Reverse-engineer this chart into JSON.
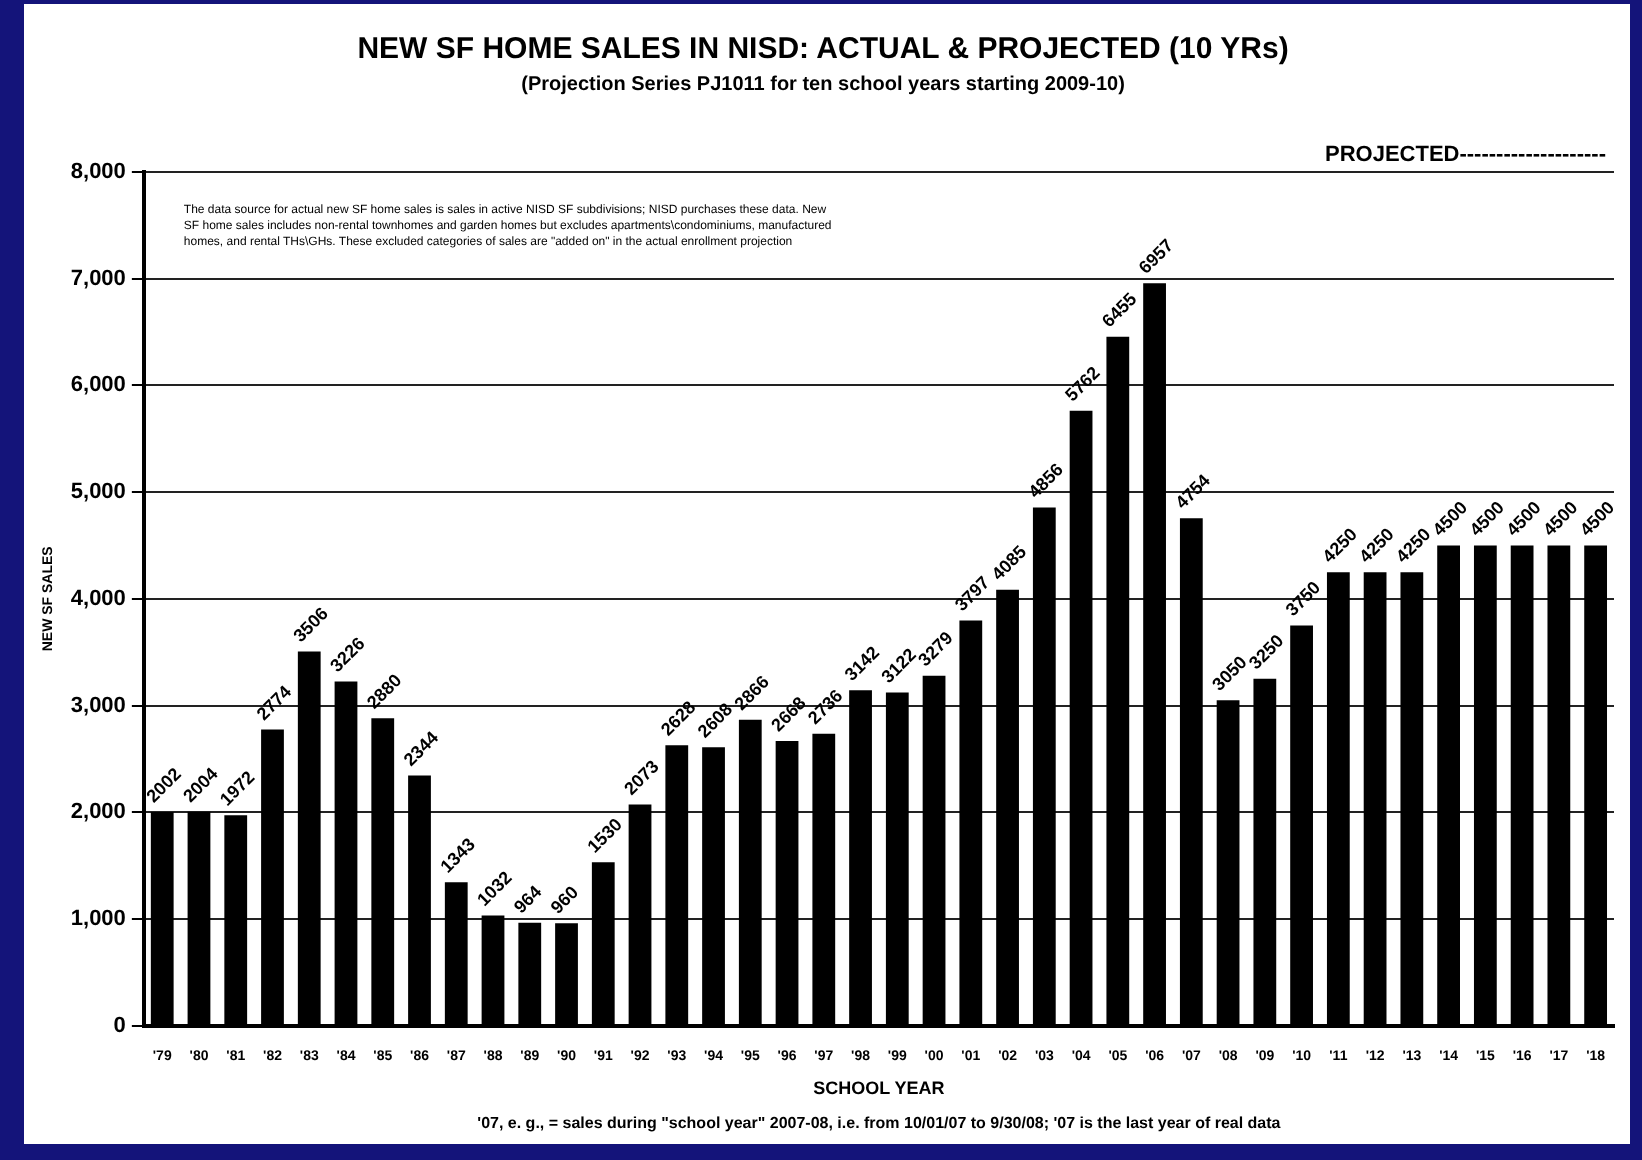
{
  "chart_data": {
    "type": "bar",
    "title": "NEW SF HOME SALES IN NISD: ACTUAL & PROJECTED (10 YRs)",
    "subtitle": "(Projection Series PJ1011 for ten school years starting 2009-10)",
    "xlabel": "SCHOOL YEAR",
    "ylabel": "NEW SF SALES",
    "categories": [
      "'79",
      "'80",
      "'81",
      "'82",
      "'83",
      "'84",
      "'85",
      "'86",
      "'87",
      "'88",
      "'89",
      "'90",
      "'91",
      "'92",
      "'93",
      "'94",
      "'95",
      "'96",
      "'97",
      "'98",
      "'99",
      "'00",
      "'01",
      "'02",
      "'03",
      "'04",
      "'05",
      "'06",
      "'07",
      "'08",
      "'09",
      "'10",
      "'11",
      "'12",
      "'13",
      "'14",
      "'15",
      "'16",
      "'17",
      "'18"
    ],
    "values": [
      2002,
      2004,
      1972,
      2774,
      3506,
      3226,
      2880,
      2344,
      1343,
      1032,
      964,
      960,
      1530,
      2073,
      2628,
      2608,
      2866,
      2668,
      2736,
      3142,
      3122,
      3279,
      3797,
      4085,
      4856,
      5762,
      6455,
      6957,
      4754,
      3050,
      3250,
      3750,
      4250,
      4250,
      4250,
      4500,
      4500,
      4500,
      4500,
      4500
    ],
    "color": "#000000",
    "data_labels": true,
    "ylim": [
      0,
      8000
    ],
    "yticks": [
      {
        "value": 0,
        "label": "0"
      },
      {
        "value": 1000,
        "label": "1,000"
      },
      {
        "value": 2000,
        "label": "2,000"
      },
      {
        "value": 3000,
        "label": "3,000"
      },
      {
        "value": 4000,
        "label": "4,000"
      },
      {
        "value": 5000,
        "label": "5,000"
      },
      {
        "value": 6000,
        "label": "6,000"
      },
      {
        "value": 7000,
        "label": "7,000"
      },
      {
        "value": 8000,
        "label": "8,000"
      }
    ],
    "grid": "y",
    "legend": false,
    "annotations": [
      "The data source for actual new SF home sales is sales in active NISD SF subdivisions; NISD purchases these data. New SF home sales includes non-rental townhomes and garden homes but excludes apartments\\condominiums, manufactured homes, and rental THs\\GHs. These excluded categories of sales are \"added on\" in the actual enrollment projection",
      "PROJECTED--------------------",
      "'07, e. g., = sales during \"school year\" 2007-08, i.e. from 10/01/07 to 9/30/08; '07 is the last year of real data"
    ]
  }
}
